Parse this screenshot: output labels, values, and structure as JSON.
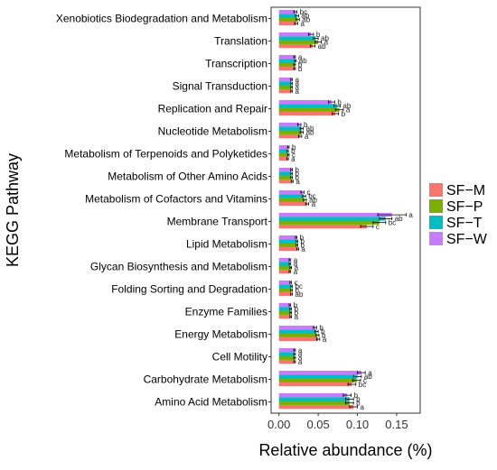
{
  "chart_data": {
    "type": "bar",
    "orientation": "horizontal",
    "xlabel": "Relative abundance (%)",
    "ylabel": "KEGG Pathway",
    "xlim": [
      -0.01,
      0.18
    ],
    "xticks": [
      "0.00",
      "0.05",
      "0.10",
      "0.15"
    ],
    "grid": false,
    "legend_position": "right",
    "categories": [
      "Xenobiotics Biodegradation and Metabolism",
      "Translation",
      "Transcription",
      "Signal Transduction",
      "Replication and Repair",
      "Nucleotide Metabolism",
      "Metabolism of Terpenoids and Polyketides",
      "Metabolism of Other Amino Acids",
      "Metabolism of Cofactors and Vitamins",
      "Membrane Transport",
      "Lipid Metabolism",
      "Glycan Biosynthesis and Metabolism",
      "Folding Sorting and Degradation",
      "Enzyme Families",
      "Energy Metabolism",
      "Cell Motility",
      "Carbohydrate Metabolism",
      "Amino Acid Metabolism"
    ],
    "series": [
      {
        "name": "SF−M",
        "color": "#F8766D",
        "values": [
          0.022,
          0.043,
          0.02,
          0.016,
          0.072,
          0.027,
          0.011,
          0.017,
          0.036,
          0.112,
          0.024,
          0.014,
          0.016,
          0.015,
          0.05,
          0.02,
          0.093,
          0.095
        ],
        "errors": [
          0.002,
          0.003,
          0.001,
          0.001,
          0.004,
          0.002,
          0.001,
          0.001,
          0.002,
          0.008,
          0.001,
          0.001,
          0.001,
          0.001,
          0.002,
          0.001,
          0.005,
          0.005
        ],
        "sig": [
          "a",
          "ab",
          "b",
          "a",
          "b",
          "a",
          "a",
          "a",
          "a",
          "c",
          "a",
          "a",
          "ab",
          "a",
          "a",
          "a",
          "bc",
          "a"
        ]
      },
      {
        "name": "SF−P",
        "color": "#7CAE00",
        "values": [
          0.024,
          0.05,
          0.02,
          0.016,
          0.077,
          0.029,
          0.012,
          0.016,
          0.033,
          0.128,
          0.023,
          0.015,
          0.016,
          0.015,
          0.049,
          0.02,
          0.099,
          0.09
        ],
        "errors": [
          0.002,
          0.004,
          0.001,
          0.001,
          0.005,
          0.002,
          0.001,
          0.001,
          0.002,
          0.008,
          0.001,
          0.001,
          0.001,
          0.001,
          0.002,
          0.001,
          0.005,
          0.005
        ],
        "sig": [
          "ab",
          "a",
          "b",
          "a",
          "a",
          "ab",
          "c",
          "b",
          "ab",
          "bc",
          "b",
          "a",
          "b",
          "b",
          "b",
          "a",
          "c",
          "b"
        ]
      },
      {
        "name": "SF−T",
        "color": "#00BFC4",
        "values": [
          0.023,
          0.047,
          0.021,
          0.016,
          0.074,
          0.029,
          0.011,
          0.016,
          0.032,
          0.136,
          0.023,
          0.014,
          0.016,
          0.015,
          0.048,
          0.02,
          0.1,
          0.09
        ],
        "errors": [
          0.002,
          0.003,
          0.001,
          0.001,
          0.004,
          0.002,
          0.001,
          0.001,
          0.002,
          0.008,
          0.001,
          0.001,
          0.001,
          0.001,
          0.002,
          0.001,
          0.005,
          0.005
        ],
        "sig": [
          "ab",
          "ab",
          "ab",
          "a",
          "ab",
          "ab",
          "b",
          "b",
          "bc",
          "ab",
          "b",
          "a",
          "bc",
          "b",
          "b",
          "a",
          "ab",
          "b"
        ]
      },
      {
        "name": "SF−W",
        "color": "#C77CFF",
        "values": [
          0.021,
          0.041,
          0.02,
          0.016,
          0.067,
          0.026,
          0.012,
          0.016,
          0.03,
          0.144,
          0.022,
          0.014,
          0.015,
          0.014,
          0.046,
          0.02,
          0.105,
          0.087
        ],
        "errors": [
          0.002,
          0.003,
          0.001,
          0.001,
          0.004,
          0.002,
          0.001,
          0.001,
          0.002,
          0.018,
          0.001,
          0.001,
          0.001,
          0.001,
          0.002,
          0.001,
          0.005,
          0.005
        ],
        "sig": [
          "bc",
          "b",
          "a",
          "a",
          "b",
          "b",
          "b",
          "b",
          "c",
          "a",
          "b",
          "a",
          "c",
          "b",
          "b",
          "a",
          "a",
          "b"
        ]
      }
    ]
  }
}
